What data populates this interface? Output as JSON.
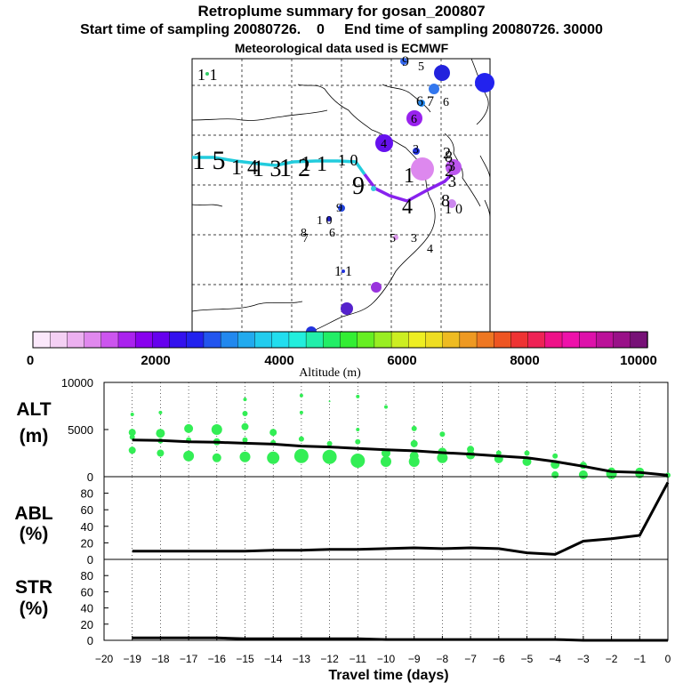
{
  "header": {
    "title": "Retroplume summary for gosan_200807",
    "subtitle": "Start time of sampling 20080726.    0     End time of sampling 20080726. 30000",
    "met_line": "Meteorological data used is ECMWF"
  },
  "colors": {
    "trajectory_cyan": "#22ccdd",
    "trajectory_purple": "#8822ee",
    "scatter_green": "#33ee55",
    "median_line": "#000000"
  },
  "map": {
    "labels": [
      {
        "text": "1 1",
        "size": 18
      },
      {
        "text": "1 5",
        "size": 30
      },
      {
        "text": "1 4",
        "size": 24
      },
      {
        "text": "1 3",
        "size": 26
      },
      {
        "text": "1 2",
        "size": 28
      },
      {
        "text": "1 1",
        "size": 24
      },
      {
        "text": "1 0",
        "size": 18
      },
      {
        "text": "9",
        "size": 16
      },
      {
        "text": "5",
        "size": 14
      },
      {
        "text": "6 7",
        "size": 16
      },
      {
        "text": "6",
        "size": 14
      },
      {
        "text": "6",
        "size": 14
      },
      {
        "text": "4",
        "size": 14
      },
      {
        "text": "3",
        "size": 14
      },
      {
        "text": "2",
        "size": 18
      },
      {
        "text": "8",
        "size": 18
      },
      {
        "text": "9",
        "size": 28
      },
      {
        "text": "1",
        "size": 24
      },
      {
        "text": "4",
        "size": 24
      },
      {
        "text": "2",
        "size": 20
      },
      {
        "text": "3",
        "size": 18
      },
      {
        "text": "8",
        "size": 20
      },
      {
        "text": "1 0",
        "size": 16
      },
      {
        "text": "9",
        "size": 14
      },
      {
        "text": "7",
        "size": 14
      },
      {
        "text": "8",
        "size": 14
      },
      {
        "text": "6",
        "size": 14
      },
      {
        "text": "5",
        "size": 14
      },
      {
        "text": "3",
        "size": 14
      },
      {
        "text": "4",
        "size": 14
      },
      {
        "text": "1 1",
        "size": 16
      },
      {
        "text": "3",
        "size": 16
      },
      {
        "text": "1 0",
        "size": 14
      }
    ]
  },
  "colorbar": {
    "title": "Altitude  (m)",
    "tick_labels": [
      "0",
      "2000",
      "4000",
      "6000",
      "8000",
      "10000"
    ]
  },
  "chart_data": [
    {
      "type": "scatter",
      "panel": "ALT",
      "ylabel": "ALT\n(m)",
      "ylabel_lines": [
        "ALT",
        "(m)"
      ],
      "ylim": [
        0,
        10000
      ],
      "yticks": [
        0,
        5000,
        10000
      ],
      "ytick_labels": [
        "0",
        "5000",
        "10000"
      ],
      "xlim": [
        -20,
        0
      ],
      "median": {
        "x": [
          -19,
          -18,
          -17,
          -16,
          -15,
          -14,
          -13,
          -12,
          -11,
          -10,
          -9,
          -8,
          -7,
          -6,
          -5,
          -4,
          -3,
          -2,
          -1,
          0
        ],
        "y": [
          3900,
          3850,
          3700,
          3650,
          3550,
          3450,
          3250,
          3150,
          3000,
          2850,
          2750,
          2550,
          2400,
          2200,
          2000,
          1600,
          1100,
          550,
          450,
          150
        ]
      },
      "points": [
        {
          "x": -19,
          "y": 6600,
          "s": 2
        },
        {
          "x": -19,
          "y": 4700,
          "s": 4
        },
        {
          "x": -19,
          "y": 4200,
          "s": 3
        },
        {
          "x": -19,
          "y": 2800,
          "s": 4
        },
        {
          "x": -18,
          "y": 6800,
          "s": 2
        },
        {
          "x": -18,
          "y": 4600,
          "s": 5
        },
        {
          "x": -18,
          "y": 3800,
          "s": 3
        },
        {
          "x": -18,
          "y": 2500,
          "s": 4
        },
        {
          "x": -17,
          "y": 5100,
          "s": 5
        },
        {
          "x": -17,
          "y": 3900,
          "s": 3
        },
        {
          "x": -17,
          "y": 2200,
          "s": 6
        },
        {
          "x": -16,
          "y": 5000,
          "s": 6
        },
        {
          "x": -16,
          "y": 3700,
          "s": 4
        },
        {
          "x": -16,
          "y": 2000,
          "s": 5
        },
        {
          "x": -15,
          "y": 8200,
          "s": 2
        },
        {
          "x": -15,
          "y": 6700,
          "s": 3
        },
        {
          "x": -15,
          "y": 5300,
          "s": 4
        },
        {
          "x": -15,
          "y": 3900,
          "s": 3
        },
        {
          "x": -15,
          "y": 2100,
          "s": 6
        },
        {
          "x": -14,
          "y": 4700,
          "s": 4
        },
        {
          "x": -14,
          "y": 3600,
          "s": 3
        },
        {
          "x": -14,
          "y": 2000,
          "s": 7
        },
        {
          "x": -13,
          "y": 8600,
          "s": 2
        },
        {
          "x": -13,
          "y": 6800,
          "s": 2
        },
        {
          "x": -13,
          "y": 4000,
          "s": 3
        },
        {
          "x": -13,
          "y": 2200,
          "s": 8
        },
        {
          "x": -12,
          "y": 8000,
          "s": 1
        },
        {
          "x": -12,
          "y": 3500,
          "s": 3
        },
        {
          "x": -12,
          "y": 2100,
          "s": 8
        },
        {
          "x": -11,
          "y": 8500,
          "s": 2
        },
        {
          "x": -11,
          "y": 5000,
          "s": 2
        },
        {
          "x": -11,
          "y": 3700,
          "s": 3
        },
        {
          "x": -11,
          "y": 1700,
          "s": 8
        },
        {
          "x": -10,
          "y": 7400,
          "s": 2
        },
        {
          "x": -10,
          "y": 2500,
          "s": 5
        },
        {
          "x": -10,
          "y": 1600,
          "s": 6
        },
        {
          "x": -9,
          "y": 5100,
          "s": 3
        },
        {
          "x": -9,
          "y": 3500,
          "s": 4
        },
        {
          "x": -9,
          "y": 2200,
          "s": 5
        },
        {
          "x": -9,
          "y": 1600,
          "s": 6
        },
        {
          "x": -8,
          "y": 4500,
          "s": 3
        },
        {
          "x": -8,
          "y": 2600,
          "s": 5
        },
        {
          "x": -8,
          "y": 2000,
          "s": 6
        },
        {
          "x": -7,
          "y": 2900,
          "s": 4
        },
        {
          "x": -7,
          "y": 2300,
          "s": 5
        },
        {
          "x": -6,
          "y": 2500,
          "s": 3
        },
        {
          "x": -6,
          "y": 1900,
          "s": 5
        },
        {
          "x": -5,
          "y": 2500,
          "s": 3
        },
        {
          "x": -5,
          "y": 1600,
          "s": 5
        },
        {
          "x": -4,
          "y": 2200,
          "s": 3
        },
        {
          "x": -4,
          "y": 1300,
          "s": 5
        },
        {
          "x": -4,
          "y": 200,
          "s": 4
        },
        {
          "x": -3,
          "y": 1200,
          "s": 4
        },
        {
          "x": -3,
          "y": 200,
          "s": 5
        },
        {
          "x": -2,
          "y": 600,
          "s": 4
        },
        {
          "x": -2,
          "y": 300,
          "s": 6
        },
        {
          "x": -1,
          "y": 500,
          "s": 5
        },
        {
          "x": -1,
          "y": 300,
          "s": 5
        },
        {
          "x": 0,
          "y": 150,
          "s": 3
        }
      ]
    },
    {
      "type": "line",
      "panel": "ABL",
      "ylabel": "ABL\n(%)",
      "ylabel_lines": [
        "ABL",
        "(%)"
      ],
      "ylim": [
        0,
        100
      ],
      "yticks": [
        0,
        20,
        40,
        60,
        80
      ],
      "ytick_labels": [
        "0",
        "20",
        "40",
        "60",
        "80"
      ],
      "xlim": [
        -20,
        0
      ],
      "x": [
        -19,
        -18,
        -17,
        -16,
        -15,
        -14,
        -13,
        -12,
        -11,
        -10,
        -9,
        -8,
        -7,
        -6,
        -5,
        -4,
        -3,
        -2,
        -1,
        0
      ],
      "y": [
        10,
        10,
        10,
        10,
        10,
        11,
        11,
        12,
        12,
        13,
        14,
        13,
        14,
        13,
        8,
        6,
        22,
        25,
        29,
        93
      ]
    },
    {
      "type": "line",
      "panel": "STR",
      "ylabel": "STR\n(%)",
      "ylabel_lines": [
        "STR",
        "(%)"
      ],
      "ylim": [
        0,
        100
      ],
      "yticks": [
        0,
        20,
        40,
        60,
        80
      ],
      "ytick_labels": [
        "0",
        "20",
        "40",
        "60",
        "80"
      ],
      "xlim": [
        -20,
        0
      ],
      "xlabel": "Travel time (days)",
      "xticks": [
        -20,
        -19,
        -18,
        -17,
        -16,
        -15,
        -14,
        -13,
        -12,
        -11,
        -10,
        -9,
        -8,
        -7,
        -6,
        -5,
        -4,
        -3,
        -2,
        -1,
        0
      ],
      "xtick_labels": [
        "−20",
        "−19",
        "−18",
        "−17",
        "−16",
        "−15",
        "−14",
        "−13",
        "−12",
        "−11",
        "−10",
        "−9",
        "−8",
        "−7",
        "−6",
        "−5",
        "−4",
        "−3",
        "−2",
        "−1",
        "0"
      ],
      "x": [
        -19,
        -18,
        -17,
        -16,
        -15,
        -14,
        -13,
        -12,
        -11,
        -10,
        -9,
        -8,
        -7,
        -6,
        -5,
        -4,
        -3,
        -2,
        -1,
        0
      ],
      "y": [
        3,
        3,
        3,
        3,
        2,
        2,
        2,
        2,
        2,
        1,
        1,
        1,
        1,
        1,
        1,
        1,
        0,
        0,
        0,
        0
      ]
    }
  ]
}
